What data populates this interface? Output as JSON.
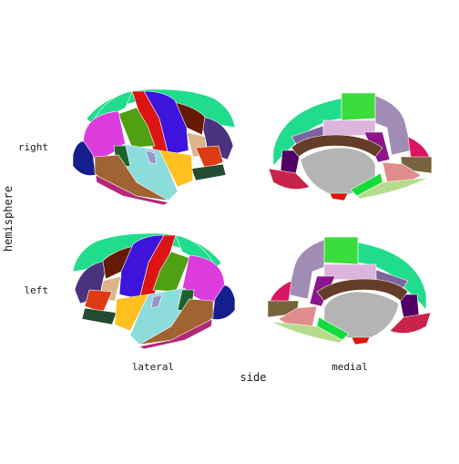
{
  "figure": {
    "x_axis_title": "side",
    "y_axis_title": "hemisphere",
    "columns": [
      "lateral",
      "medial"
    ],
    "rows": [
      "right",
      "left"
    ]
  },
  "panels": [
    {
      "key": "right-lateral",
      "row": "right",
      "column": "lateral"
    },
    {
      "key": "right-medial",
      "row": "right",
      "column": "medial"
    },
    {
      "key": "left-lateral",
      "row": "left",
      "column": "lateral"
    },
    {
      "key": "left-medial",
      "row": "left",
      "column": "medial"
    }
  ],
  "colors": {
    "superiorfrontal": "#20dc8c",
    "precentral": "#3c14dc",
    "postcentral": "#dc1414",
    "paracentral": "#3cdc3c",
    "precuneus": "#a08cb4",
    "supramarginal": "#50a014",
    "inferiorparietal": "#dc3cdc",
    "superiortemporal": "#8cdcdc",
    "middletemporal": "#a06432",
    "inferiortemporal": "#b42878",
    "caudalmiddlefrontal": "#641900",
    "rostralmiddlefrontal": "#4b327d",
    "parsopercularis": "#dcb48c",
    "parstriangularis": "#dc3c14",
    "parsorbitalis": "#144632",
    "lateralorbitofrontal": "#234b32",
    "lateraloccipital": "#141e8c",
    "insula": "#ffc020",
    "transversetemporal": "#9696c8",
    "bankssts": "#196428",
    "corpuscallosum": "#643c28",
    "medialwall": "#b4b4b4",
    "posteriorcingulate": "#dcb4dc",
    "isthmuscingulate": "#8c148c",
    "caudalanteriorcingulate": "#7d64a0",
    "rostralanteriorcingulate": "#500064",
    "medialorbitofrontal": "#c8234b",
    "cuneus": "#dc1464",
    "pericalcarine": "#78643c",
    "lingual": "#e18c8c",
    "fusiform": "#b4dc8c",
    "parahippocampal": "#14dc3c",
    "entorhinal": "#dc140a",
    "frontalpole": "#640064",
    "temporalpole": "#464646"
  }
}
